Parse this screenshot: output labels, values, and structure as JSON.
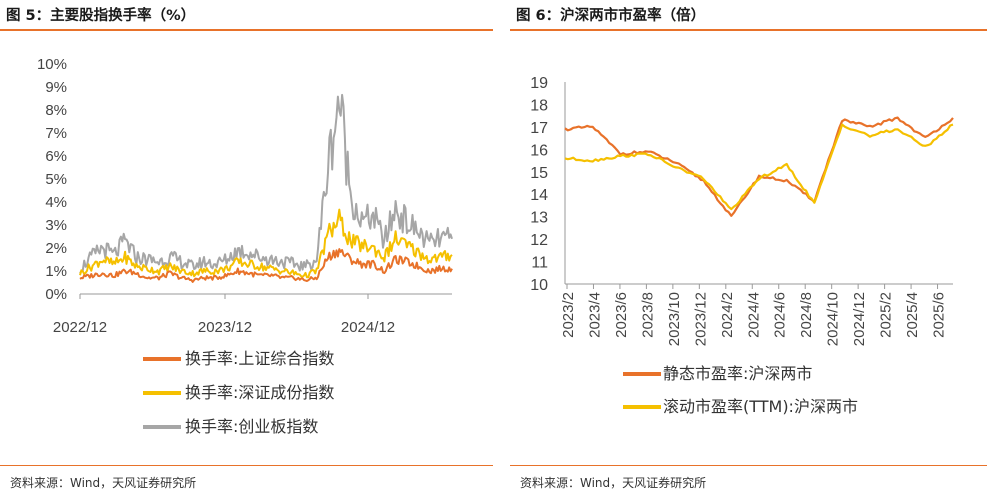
{
  "left": {
    "title": "图 5：主要股指换手率（%）",
    "source": "资料来源：Wind，天风证券研究所"
  },
  "right": {
    "title": "图 6：沪深两市市盈率（倍）",
    "source": "资料来源：Wind，天风证券研究所"
  },
  "chart_data": [
    {
      "type": "line",
      "title": "主要股指换手率（%）",
      "xlabel": "",
      "ylabel": "",
      "ylim": [
        0,
        10
      ],
      "y_ticks": [
        "0%",
        "1%",
        "2%",
        "3%",
        "4%",
        "5%",
        "6%",
        "7%",
        "8%",
        "9%",
        "10%"
      ],
      "x_ticks": [
        "2022/12",
        "2023/12",
        "2024/12"
      ],
      "legend_position": "bottom",
      "x": [
        "2022/12",
        "2023/01",
        "2023/02",
        "2023/03",
        "2023/04",
        "2023/05",
        "2023/06",
        "2023/07",
        "2023/08",
        "2023/09",
        "2023/10",
        "2023/11",
        "2023/12",
        "2024/01",
        "2024/02",
        "2024/03",
        "2024/04",
        "2024/05",
        "2024/06",
        "2024/07",
        "2024/08",
        "2024/09a",
        "2024/09b",
        "2024/10a",
        "2024/10b",
        "2024/11",
        "2024/12",
        "2025/01",
        "2025/02",
        "2025/03",
        "2025/04",
        "2025/05",
        "2025/06",
        "2025/07"
      ],
      "series": [
        {
          "name": "换手率:上证综合指数",
          "color": "#e8722a",
          "values": [
            0.7,
            0.8,
            0.9,
            0.8,
            1.0,
            0.9,
            0.7,
            0.7,
            0.9,
            0.7,
            0.6,
            0.7,
            0.7,
            0.8,
            1.0,
            0.9,
            0.8,
            0.8,
            0.7,
            0.7,
            0.6,
            0.7,
            1.6,
            1.9,
            1.5,
            1.3,
            1.3,
            1.0,
            1.5,
            1.4,
            1.2,
            1.0,
            1.1,
            1.1
          ]
        },
        {
          "name": "换手率:深证成份指数",
          "color": "#f5c000",
          "values": [
            0.9,
            1.2,
            1.5,
            1.3,
            1.6,
            1.2,
            1.1,
            1.0,
            1.2,
            1.0,
            0.9,
            1.0,
            1.0,
            1.1,
            1.4,
            1.3,
            1.2,
            1.1,
            1.0,
            0.9,
            0.8,
            1.0,
            2.6,
            3.2,
            2.3,
            2.1,
            2.0,
            1.6,
            2.4,
            2.1,
            1.8,
            1.5,
            1.6,
            1.7
          ]
        },
        {
          "name": "换手率:创业板指数",
          "color": "#a6a6a6",
          "values": [
            1.1,
            1.6,
            2.0,
            1.7,
            2.3,
            1.6,
            1.5,
            1.4,
            1.6,
            1.4,
            1.2,
            1.4,
            1.3,
            1.5,
            1.9,
            1.8,
            1.6,
            1.5,
            1.4,
            1.3,
            1.2,
            1.5,
            5.6,
            8.6,
            4.4,
            3.1,
            3.4,
            2.3,
            3.7,
            3.1,
            2.7,
            2.2,
            2.4,
            2.4
          ]
        }
      ]
    },
    {
      "type": "line",
      "title": "沪深两市市盈率（倍）",
      "xlabel": "",
      "ylabel": "",
      "ylim": [
        10,
        19
      ],
      "y_ticks": [
        "10",
        "11",
        "12",
        "13",
        "14",
        "15",
        "16",
        "17",
        "18",
        "19"
      ],
      "x": [
        "2023/2",
        "2023/4",
        "2023/6",
        "2023/8",
        "2023/10",
        "2023/12",
        "2024/2",
        "2024/4",
        "2024/6",
        "2024/8",
        "2024/10",
        "2024/12",
        "2025/2",
        "2025/4",
        "2025/6"
      ],
      "legend_position": "bottom",
      "series": [
        {
          "name": "静态市盈率:沪深两市",
          "color": "#e8722a",
          "values": [
            16.9,
            17.0,
            15.8,
            15.9,
            15.4,
            14.6,
            13.0,
            14.8,
            14.6,
            13.7,
            17.3,
            17.0,
            17.4,
            16.5,
            17.4
          ]
        },
        {
          "name": "滚动市盈率(TTM):沪深两市",
          "color": "#f5c000",
          "values": [
            15.6,
            15.5,
            15.7,
            15.8,
            15.2,
            14.7,
            13.3,
            14.7,
            15.3,
            13.6,
            17.1,
            16.6,
            16.9,
            16.1,
            17.1
          ]
        }
      ]
    }
  ]
}
